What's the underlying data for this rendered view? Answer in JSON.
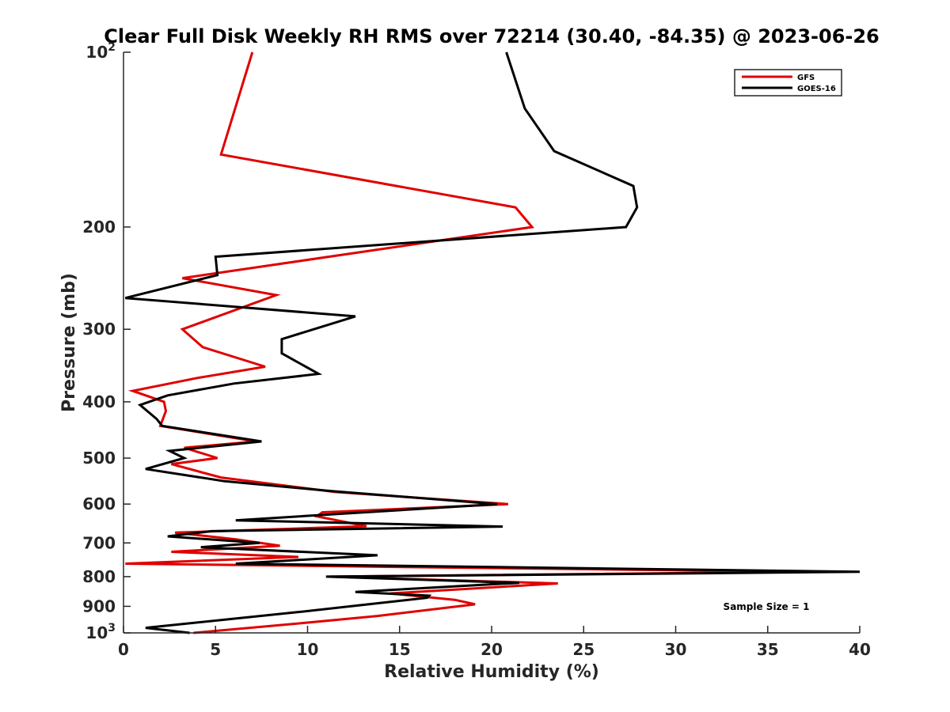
{
  "chart_data": {
    "type": "line",
    "title": "Clear Full Disk Weekly RH RMS over 72214 (30.40, -84.35) @ 2023-06-26",
    "xlabel": "Relative Humidity (%)",
    "ylabel": "Pressure (mb)",
    "xlim": [
      0,
      40
    ],
    "ylim": [
      100,
      1000
    ],
    "yscale": "log",
    "y_reversed": true,
    "grid": false,
    "x_ticks": [
      "0",
      "5",
      "10",
      "15",
      "20",
      "25",
      "30",
      "35",
      "40"
    ],
    "y_ticks": [
      {
        "value": 100,
        "base": "10",
        "exp": "2"
      },
      {
        "value": 200,
        "label": "200"
      },
      {
        "value": 300,
        "label": "300"
      },
      {
        "value": 400,
        "label": "400"
      },
      {
        "value": 500,
        "label": "500"
      },
      {
        "value": 600,
        "label": "600"
      },
      {
        "value": 700,
        "label": "700"
      },
      {
        "value": 800,
        "label": "800"
      },
      {
        "value": 900,
        "label": "900"
      },
      {
        "value": 1000,
        "base": "10",
        "exp": "3"
      }
    ],
    "legend_position": "top-right",
    "annotation": "Sample Size = 1",
    "series": [
      {
        "name": "GFS",
        "color": "#e00000",
        "points": [
          [
            7.0,
            100
          ],
          [
            5.3,
            150
          ],
          [
            21.3,
            185
          ],
          [
            22.2,
            200
          ],
          [
            3.2,
            245
          ],
          [
            8.3,
            262
          ],
          [
            3.2,
            300
          ],
          [
            4.3,
            322
          ],
          [
            7.7,
            348
          ],
          [
            4.0,
            364
          ],
          [
            0.5,
            383
          ],
          [
            2.2,
            400
          ],
          [
            2.3,
            415
          ],
          [
            2.0,
            440
          ],
          [
            7.2,
            468
          ],
          [
            3.3,
            480
          ],
          [
            5.1,
            500
          ],
          [
            2.6,
            512
          ],
          [
            5.3,
            540
          ],
          [
            11.5,
            572
          ],
          [
            20.9,
            600
          ],
          [
            10.8,
            620
          ],
          [
            10.5,
            630
          ],
          [
            13.2,
            655
          ],
          [
            2.8,
            672
          ],
          [
            6.1,
            690
          ],
          [
            8.5,
            708
          ],
          [
            2.6,
            725
          ],
          [
            9.5,
            740
          ],
          [
            0.1,
            760
          ],
          [
            37.0,
            785
          ],
          [
            11.2,
            800
          ],
          [
            23.6,
            822
          ],
          [
            14.5,
            855
          ],
          [
            18.0,
            877
          ],
          [
            19.1,
            893
          ],
          [
            13.8,
            935
          ],
          [
            10.0,
            960
          ],
          [
            3.8,
            1000
          ]
        ]
      },
      {
        "name": "GOES-16",
        "color": "#000000",
        "points": [
          [
            20.8,
            100
          ],
          [
            21.8,
            125
          ],
          [
            23.4,
            148
          ],
          [
            27.7,
            170
          ],
          [
            27.9,
            185
          ],
          [
            27.3,
            200
          ],
          [
            5.0,
            225
          ],
          [
            5.1,
            242
          ],
          [
            0.1,
            265
          ],
          [
            12.6,
            285
          ],
          [
            8.6,
            312
          ],
          [
            8.6,
            330
          ],
          [
            10.6,
            358
          ],
          [
            6.0,
            372
          ],
          [
            2.4,
            390
          ],
          [
            0.9,
            405
          ],
          [
            1.8,
            428
          ],
          [
            2.1,
            440
          ],
          [
            7.5,
            468
          ],
          [
            2.5,
            486
          ],
          [
            3.3,
            500
          ],
          [
            1.2,
            522
          ],
          [
            5.5,
            548
          ],
          [
            11.3,
            570
          ],
          [
            20.3,
            600
          ],
          [
            6.1,
            640
          ],
          [
            20.6,
            656
          ],
          [
            4.8,
            668
          ],
          [
            2.4,
            682
          ],
          [
            7.4,
            700
          ],
          [
            4.2,
            712
          ],
          [
            13.8,
            735
          ],
          [
            6.1,
            760
          ],
          [
            40.0,
            785
          ],
          [
            11.0,
            800
          ],
          [
            21.5,
            820
          ],
          [
            12.6,
            850
          ],
          [
            16.6,
            863
          ],
          [
            16.5,
            870
          ],
          [
            9.6,
            920
          ],
          [
            1.2,
            980
          ],
          [
            3.6,
            1000
          ]
        ]
      }
    ]
  }
}
